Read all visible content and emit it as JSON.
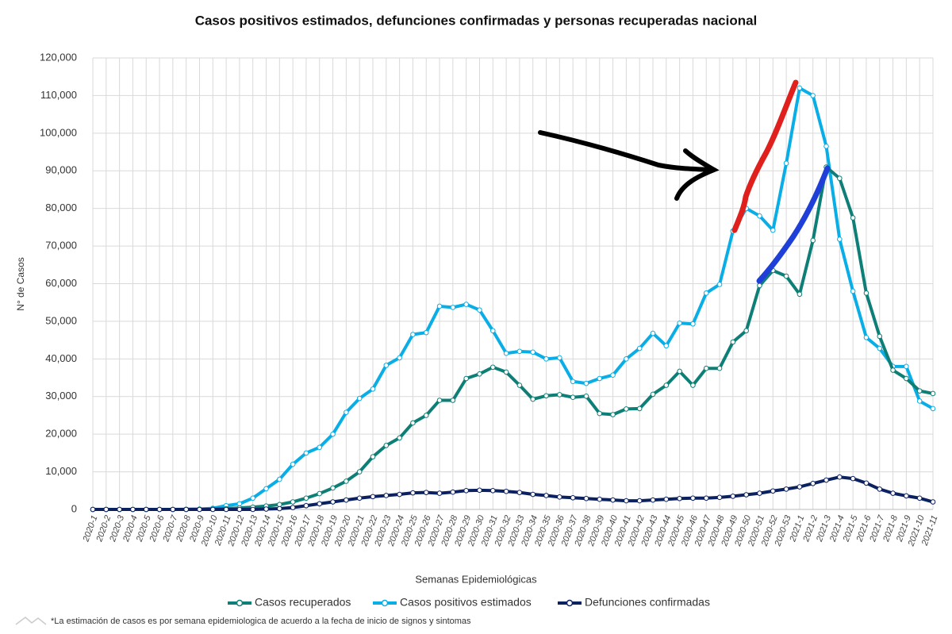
{
  "chart_data": {
    "type": "line",
    "title": "Casos positivos estimados, defunciones confirmadas y personas recuperadas nacional",
    "y_label": "N° de Casos",
    "x_label": "Semanas Epidemiológicas",
    "footnote": "*La estimación de casos es por semana epidemiologica de acuerdo a la fecha de inicio de signos y sintomas",
    "categories": [
      "2020-1",
      "2020-2",
      "2020-3",
      "2020-4",
      "2020-5",
      "2020-6",
      "2020-7",
      "2020-8",
      "2020-9",
      "2020-10",
      "2020-11",
      "2020-12",
      "2020-13",
      "2020-14",
      "2020-15",
      "2020-16",
      "2020-17",
      "2020-18",
      "2020-19",
      "2020-20",
      "2020-21",
      "2020-22",
      "2020-23",
      "2020-24",
      "2020-25",
      "2020-26",
      "2020-27",
      "2020-28",
      "2020-29",
      "2020-30",
      "2020-31",
      "2020-32",
      "2020-33",
      "2020-34",
      "2020-35",
      "2020-36",
      "2020-37",
      "2020-38",
      "2020-39",
      "2020-40",
      "2020-41",
      "2020-42",
      "2020-43",
      "2020-44",
      "2020-45",
      "2020-46",
      "2020-47",
      "2020-48",
      "2020-49",
      "2020-50",
      "2020-51",
      "2020-52",
      "2020-53",
      "2021-1",
      "2021-2",
      "2021-3",
      "2021-4",
      "2021-5",
      "2021-6",
      "2021-7",
      "2021-8",
      "2021-9",
      "2021-10",
      "2021-11"
    ],
    "series": [
      {
        "name": "Casos recuperados",
        "color": "#0e7f76",
        "values": [
          0,
          0,
          0,
          0,
          0,
          0,
          0,
          0,
          50,
          100,
          200,
          400,
          600,
          900,
          1300,
          2000,
          3000,
          4200,
          5700,
          7500,
          10000,
          14000,
          17000,
          19000,
          23000,
          25000,
          29000,
          29000,
          34800,
          36000,
          37800,
          36500,
          33000,
          29300,
          30200,
          30500,
          29800,
          30100,
          25500,
          25200,
          26700,
          26800,
          30600,
          33000,
          36700,
          33000,
          37500,
          37500,
          44500,
          47500,
          59500,
          63500,
          62000,
          57200,
          71500,
          91000,
          88000,
          77500,
          57500,
          46000,
          37000,
          34800,
          31500,
          30800
        ]
      },
      {
        "name": "Casos positivos estimados",
        "color": "#0aaee6",
        "values": [
          0,
          0,
          0,
          0,
          0,
          0,
          0,
          50,
          100,
          300,
          1000,
          1500,
          3000,
          5500,
          8000,
          12000,
          15000,
          16500,
          20000,
          25800,
          29500,
          32000,
          38300,
          40300,
          46500,
          47000,
          54000,
          53700,
          54500,
          53000,
          47500,
          41500,
          42000,
          41800,
          40000,
          40300,
          34000,
          33500,
          34800,
          35700,
          40000,
          42800,
          46800,
          43500,
          49500,
          49300,
          57500,
          59800,
          74000,
          80000,
          78000,
          74200,
          92000,
          112000,
          110000,
          96500,
          71800,
          58000,
          45700,
          42800,
          38000,
          38000,
          28800,
          26800
        ]
      },
      {
        "name": "Defunciones confirmadas",
        "color": "#0b2160",
        "values": [
          0,
          0,
          0,
          0,
          0,
          0,
          0,
          0,
          0,
          0,
          0,
          0,
          0,
          100,
          200,
          500,
          1000,
          1500,
          2000,
          2500,
          3000,
          3400,
          3700,
          4000,
          4400,
          4500,
          4300,
          4600,
          5000,
          5100,
          5000,
          4800,
          4500,
          4000,
          3700,
          3300,
          3100,
          2900,
          2700,
          2500,
          2300,
          2300,
          2500,
          2700,
          2900,
          3000,
          3000,
          3200,
          3500,
          3900,
          4300,
          4900,
          5400,
          6000,
          6900,
          7800,
          8600,
          8200,
          7000,
          5400,
          4300,
          3600,
          3000,
          2000
        ]
      }
    ],
    "ylim": [
      0,
      120000
    ],
    "yticks": [
      0,
      {
        "value": 10000,
        "label": "10,000"
      },
      {
        "value": 20000,
        "label": "20,000"
      },
      {
        "value": 30000,
        "label": "30,000"
      },
      {
        "value": 40000,
        "label": "40,000"
      },
      {
        "value": 50000,
        "label": "50,000"
      },
      {
        "value": 60000,
        "label": "60,000"
      },
      {
        "value": 70000,
        "label": "70,000"
      },
      {
        "value": 80000,
        "label": "80,000"
      },
      {
        "value": 90000,
        "label": "90,000"
      },
      {
        "value": 100000,
        "label": "100,000"
      },
      {
        "value": 110000,
        "label": "110,000"
      },
      {
        "value": 120000,
        "label": "120,000"
      }
    ],
    "grid": true,
    "legend": "bottom"
  }
}
